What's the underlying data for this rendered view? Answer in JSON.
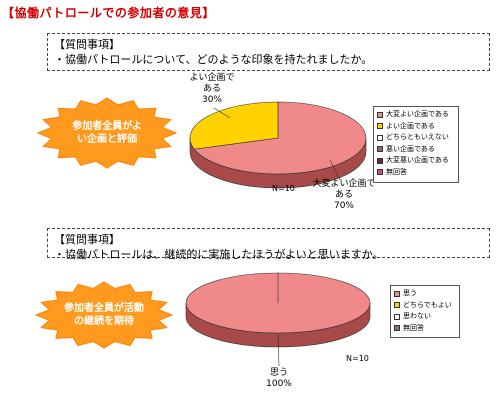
{
  "page": {
    "title": "【協働パトロールでの参加者の意見】"
  },
  "colors": {
    "pink": "#f08a8a",
    "pink_side": "#a84a4a",
    "yellow": "#ffd200",
    "yellow_side": "#a08400",
    "burst": "#ff9a1e"
  },
  "questions": [
    {
      "heading": "【質問事項】",
      "text": "・協働パトロールについて、どのような印象を持たれましたか。",
      "callout_line1": "参加者全員がよ",
      "callout_line2": "い企画と評価",
      "n_label": "N=10",
      "slice_labels": [
        {
          "line1": "大変よい企画で",
          "line2": "ある",
          "line3": "70%"
        },
        {
          "line1": "よい企画で",
          "line2": "ある",
          "line3": "30%"
        }
      ]
    },
    {
      "heading": "【質問事項】",
      "text": "・協働パトロールは、継続的に実施したほうがよいと思いますか。",
      "callout_line1": "参加者全員が活動",
      "callout_line2": "の継続を期待",
      "n_label": "N=10",
      "slice_labels": [
        {
          "line1": "思う",
          "line2": "100%"
        }
      ]
    }
  ],
  "chart_data": [
    {
      "type": "pie",
      "categories": [
        "大変よい企画である",
        "よい企画である",
        "どちらともいえない",
        "悪い企画である",
        "大変悪い企画である",
        "無回答"
      ],
      "values": [
        70,
        30,
        0,
        0,
        0,
        0
      ],
      "unit": "%",
      "n": 10,
      "legend": [
        "大変よい企画である",
        "よい企画である",
        "どちらともいえない",
        "悪い企画である",
        "大変悪い企画である",
        "無回答"
      ],
      "legend_colors": [
        "#f08a8a",
        "#ffd200",
        "#ffffff",
        "#8a6a8a",
        "#7a2040",
        "#c8506a"
      ],
      "legend_placement": "right"
    },
    {
      "type": "pie",
      "categories": [
        "思う",
        "どちらでもよい",
        "思わない",
        "無回答"
      ],
      "values": [
        100,
        0,
        0,
        0
      ],
      "unit": "%",
      "n": 10,
      "legend": [
        "思う",
        "どちらでもよい",
        "思わない",
        "無回答"
      ],
      "legend_colors": [
        "#f08a8a",
        "#ffd200",
        "#ffffff",
        "#8a6a8a"
      ],
      "legend_placement": "right"
    }
  ]
}
